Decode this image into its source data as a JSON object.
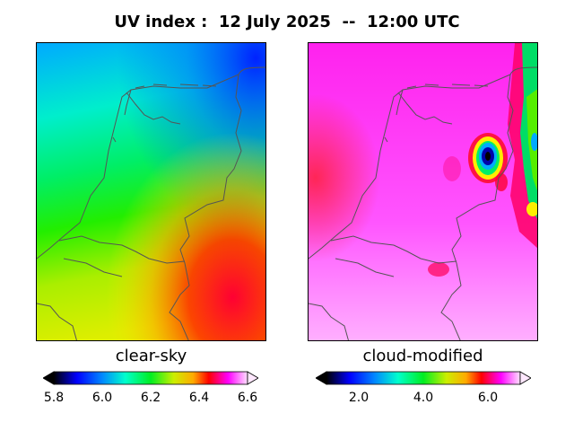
{
  "title": "UV index :  12 July 2025  --  12:00 UTC",
  "colors": {
    "border": "#555555",
    "frame": "#000000"
  },
  "panels": [
    {
      "label": "clear-sky",
      "colorbar": {
        "ticks": [
          "5.8",
          "6.0",
          "6.2",
          "6.4",
          "6.6"
        ],
        "min": 5.8,
        "max": 6.6
      }
    },
    {
      "label": "cloud-modified",
      "colorbar": {
        "ticks": [
          "2.0",
          "4.0",
          "6.0"
        ],
        "min": 1.0,
        "max": 7.0
      }
    }
  ]
}
